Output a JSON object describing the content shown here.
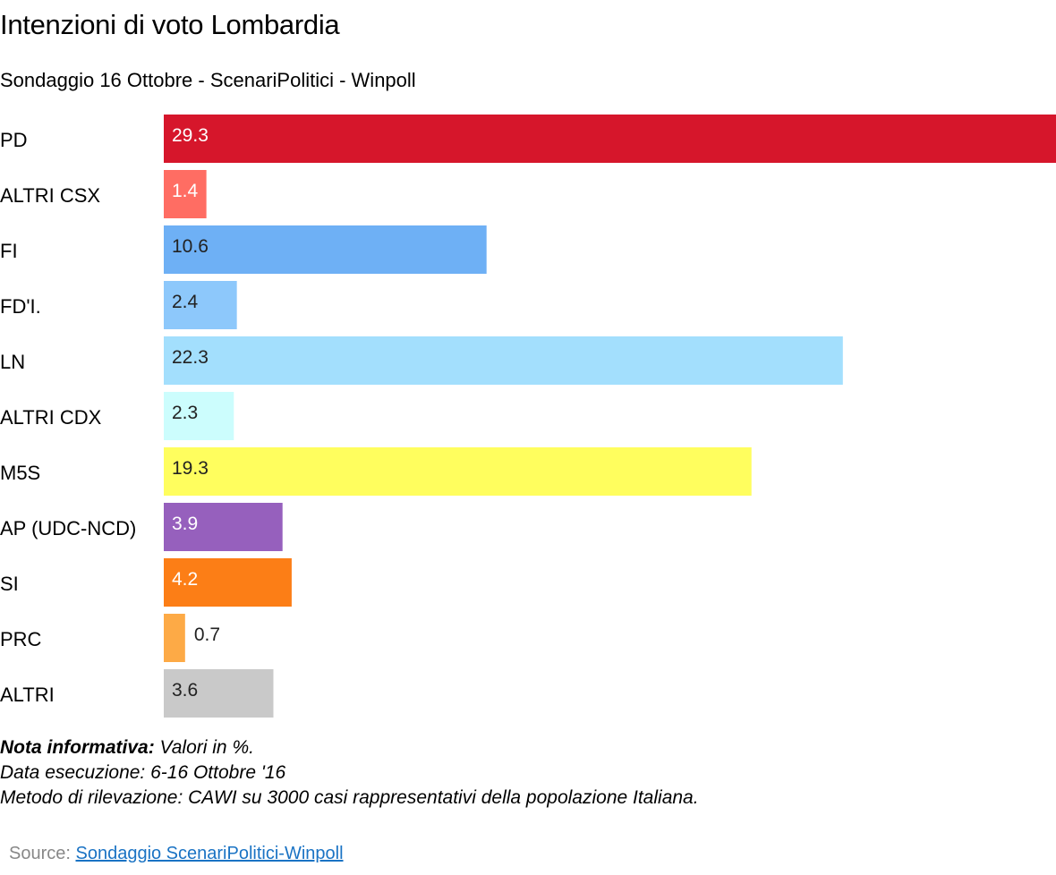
{
  "header": {
    "title": "Intenzioni di voto Lombardia",
    "subtitle": "Sondaggio 16 Ottobre - ScenariPolitici - Winpoll"
  },
  "chart_data": {
    "type": "bar",
    "orientation": "horizontal",
    "title": "Intenzioni di voto Lombardia",
    "subtitle": "Sondaggio 16 Ottobre - ScenariPolitici - Winpoll",
    "xlabel": "",
    "ylabel": "",
    "xlim": [
      0,
      29.3
    ],
    "grid": false,
    "legend": "none",
    "categories": [
      "PD",
      "ALTRI CSX",
      "FI",
      "FD'I.",
      "LN",
      "ALTRI CDX",
      "M5S",
      "AP (UDC-NCD)",
      "SI",
      "PRC",
      "ALTRI"
    ],
    "values": [
      29.3,
      1.4,
      10.6,
      2.4,
      22.3,
      2.3,
      19.3,
      3.9,
      4.2,
      0.7,
      3.6
    ],
    "value_labels": [
      "29.3",
      "1.4",
      "10.6",
      "2.4",
      "22.3",
      "2.3",
      "19.3",
      "3.9",
      "4.2",
      "0.7",
      "3.6"
    ],
    "colors": [
      "#d6162b",
      "#ff6d63",
      "#6eb0f5",
      "#8dc8fb",
      "#a3dffd",
      "#ccfdfd",
      "#fffe5e",
      "#9660bd",
      "#fc7e16",
      "#fdaa46",
      "#c9c9c9"
    ],
    "label_colors": [
      "#ffffff",
      "#ffffff",
      "#222222",
      "#222222",
      "#222222",
      "#222222",
      "#222222",
      "#ffffff",
      "#ffffff",
      "#222222",
      "#222222"
    ]
  },
  "notes": {
    "label": "Nota informativa:",
    "line1_text": " Valori in %.",
    "line2": "Data esecuzione: 6-16  Ottobre '16",
    "line3": "Metodo di rilevazione: CAWI su 3000 casi rappresentativi della popolazione Italiana."
  },
  "source": {
    "prefix": "Source: ",
    "link_text": "Sondaggio ScenariPolitici-Winpoll"
  }
}
